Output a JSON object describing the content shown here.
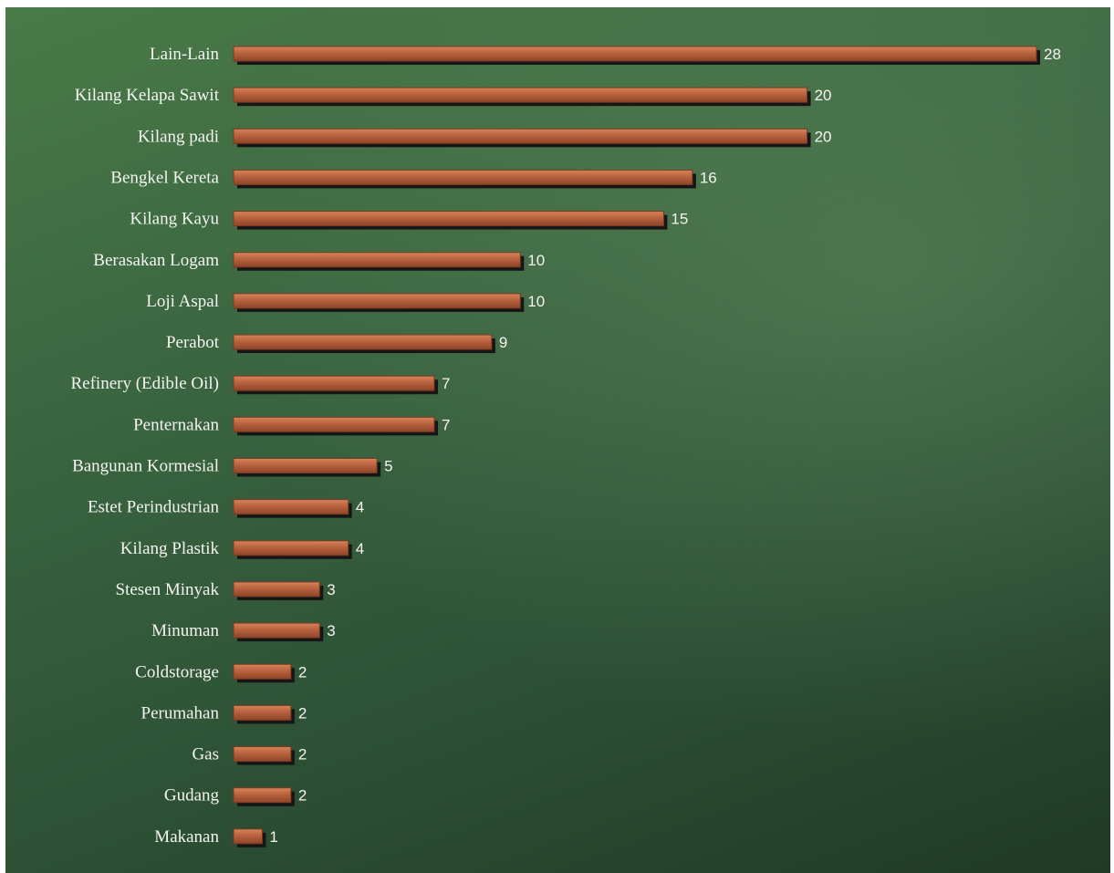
{
  "chart_data": {
    "type": "bar",
    "orientation": "horizontal",
    "categories": [
      "Lain-Lain",
      "Kilang Kelapa Sawit",
      "Kilang padi",
      "Bengkel Kereta",
      "Kilang Kayu",
      "Berasakan Logam",
      "Loji Aspal",
      "Perabot",
      "Refinery (Edible Oil)",
      "Penternakan",
      "Bangunan Kormesial",
      "Estet Perindustrian",
      "Kilang Plastik",
      "Stesen Minyak",
      "Minuman",
      "Coldstorage",
      "Perumahan",
      "Gas",
      "Gudang",
      "Makanan"
    ],
    "values": [
      28,
      20,
      20,
      16,
      15,
      10,
      10,
      9,
      7,
      7,
      5,
      4,
      4,
      3,
      3,
      2,
      2,
      2,
      2,
      1
    ],
    "value_labels": [
      "28",
      "20",
      "20",
      "16",
      "15",
      "10",
      "10",
      "9",
      "7",
      "7",
      "5",
      "4",
      "4",
      "3",
      "3",
      "2",
      "2",
      "2",
      "2",
      "1"
    ],
    "title": "",
    "xlabel": "",
    "ylabel": "",
    "xlim": [
      0,
      28
    ],
    "grid": false,
    "legend": "none",
    "colors": {
      "bar": "#b8623e",
      "bar_highlight": "#d8845a",
      "bar_shadow": "#161616",
      "background": "#3a6540",
      "text": "#f4f4f0"
    }
  }
}
